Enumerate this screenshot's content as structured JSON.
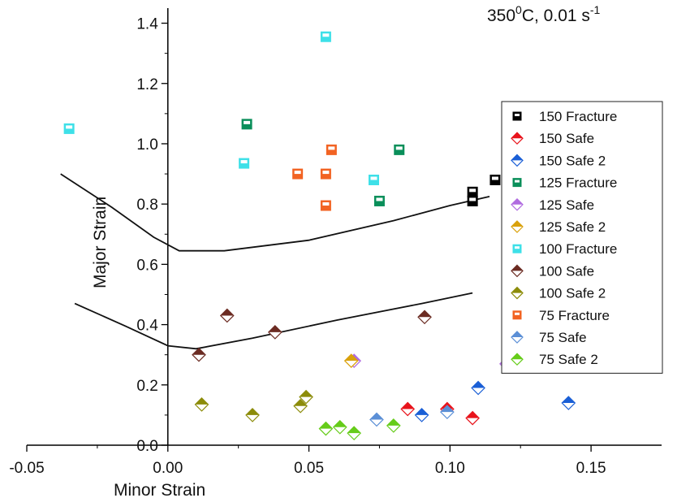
{
  "chart_data": {
    "type": "scatter",
    "title": "",
    "condition": {
      "main": "350",
      "sup": "0",
      "rest": "C, 0.01 s",
      "rate_sup": "-1"
    },
    "xlabel": "Minor Strain",
    "ylabel": "Major Strain",
    "xlim": [
      -0.05,
      0.175
    ],
    "ylim": [
      0.0,
      1.45
    ],
    "xticks": [
      -0.05,
      0.0,
      0.05,
      0.1,
      0.15
    ],
    "xtick_labels": [
      "-0.05",
      "0.00",
      "0.05",
      "0.10",
      "0.15"
    ],
    "yticks": [
      0.0,
      0.2,
      0.4,
      0.6,
      0.8,
      1.0,
      1.2,
      1.4
    ],
    "ytick_labels": [
      "0.0",
      "0.2",
      "0.4",
      "0.6",
      "0.8",
      "1.0",
      "1.2",
      "1.4"
    ],
    "legend_position": "right",
    "series": [
      {
        "name": "150 Fracture",
        "marker": "square",
        "color": "#000000",
        "points": [
          [
            0.108,
            0.84
          ],
          [
            0.108,
            0.81
          ],
          [
            0.116,
            0.88
          ]
        ]
      },
      {
        "name": "150 Safe",
        "marker": "diamond",
        "color": "#e8141c",
        "points": [
          [
            0.085,
            0.12
          ],
          [
            0.099,
            0.12
          ],
          [
            0.108,
            0.09
          ]
        ]
      },
      {
        "name": "150 Safe 2",
        "marker": "diamond",
        "color": "#1a5fd6",
        "points": [
          [
            0.09,
            0.1
          ],
          [
            0.11,
            0.19
          ],
          [
            0.142,
            0.14
          ]
        ]
      },
      {
        "name": "125 Fracture",
        "marker": "square",
        "color": "#0a8f5a",
        "points": [
          [
            0.028,
            1.065
          ],
          [
            0.075,
            0.81
          ],
          [
            0.082,
            0.98
          ]
        ]
      },
      {
        "name": "125 Safe",
        "marker": "diamond",
        "color": "#b06be0",
        "points": [
          [
            0.066,
            0.28
          ],
          [
            0.12,
            0.27
          ]
        ]
      },
      {
        "name": "125 Safe 2",
        "marker": "diamond",
        "color": "#d9a10b",
        "points": [
          [
            0.065,
            0.28
          ]
        ]
      },
      {
        "name": "100 Fracture",
        "marker": "square",
        "color": "#3ee0e8",
        "points": [
          [
            -0.035,
            1.05
          ],
          [
            0.027,
            0.935
          ],
          [
            0.056,
            1.355
          ],
          [
            0.073,
            0.88
          ]
        ]
      },
      {
        "name": "100 Safe",
        "marker": "diamond",
        "color": "#6b2b22",
        "points": [
          [
            0.011,
            0.3
          ],
          [
            0.021,
            0.43
          ],
          [
            0.038,
            0.375
          ],
          [
            0.091,
            0.425
          ]
        ]
      },
      {
        "name": "100 Safe 2",
        "marker": "diamond",
        "color": "#8c8c0a",
        "points": [
          [
            0.012,
            0.135
          ],
          [
            0.03,
            0.1
          ],
          [
            0.047,
            0.13
          ],
          [
            0.049,
            0.16
          ]
        ]
      },
      {
        "name": "75 Fracture",
        "marker": "square",
        "color": "#f26322",
        "points": [
          [
            0.046,
            0.9
          ],
          [
            0.056,
            0.9
          ],
          [
            0.056,
            0.795
          ],
          [
            0.058,
            0.98
          ]
        ]
      },
      {
        "name": "75 Safe",
        "marker": "diamond",
        "color": "#5b8fd6",
        "points": [
          [
            0.074,
            0.085
          ],
          [
            0.099,
            0.11
          ]
        ]
      },
      {
        "name": "75 Safe 2",
        "marker": "diamond",
        "color": "#66cc1a",
        "points": [
          [
            0.056,
            0.055
          ],
          [
            0.061,
            0.06
          ],
          [
            0.066,
            0.04
          ],
          [
            0.08,
            0.065
          ]
        ]
      }
    ],
    "curves": [
      {
        "points": [
          [
            -0.038,
            0.9
          ],
          [
            -0.02,
            0.79
          ],
          [
            -0.005,
            0.69
          ],
          [
            0.004,
            0.645
          ],
          [
            0.02,
            0.645
          ],
          [
            0.05,
            0.68
          ],
          [
            0.08,
            0.745
          ],
          [
            0.1,
            0.795
          ],
          [
            0.114,
            0.825
          ]
        ]
      },
      {
        "points": [
          [
            -0.033,
            0.47
          ],
          [
            -0.015,
            0.395
          ],
          [
            0.0,
            0.33
          ],
          [
            0.01,
            0.32
          ],
          [
            0.03,
            0.355
          ],
          [
            0.06,
            0.415
          ],
          [
            0.09,
            0.47
          ],
          [
            0.108,
            0.505
          ]
        ]
      }
    ]
  }
}
